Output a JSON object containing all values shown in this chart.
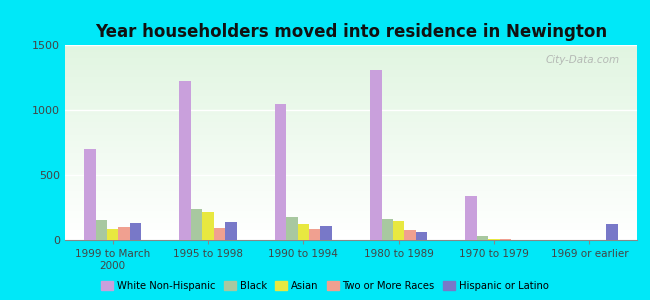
{
  "title": "Year householders moved into residence in Newington",
  "categories": [
    "1999 to March\n2000",
    "1995 to 1998",
    "1990 to 1994",
    "1980 to 1989",
    "1970 to 1979",
    "1969 or earlier"
  ],
  "series": {
    "White Non-Hispanic": [
      700,
      1220,
      1050,
      1310,
      335,
      0
    ],
    "Black": [
      155,
      235,
      175,
      160,
      30,
      0
    ],
    "Asian": [
      85,
      215,
      125,
      150,
      10,
      0
    ],
    "Two or More Races": [
      100,
      90,
      85,
      80,
      5,
      0
    ],
    "Hispanic or Latino": [
      130,
      135,
      110,
      65,
      0,
      120
    ]
  },
  "colors": {
    "White Non-Hispanic": "#c9a0dc",
    "Black": "#a8c8a0",
    "Asian": "#e8e840",
    "Two or More Races": "#f0a090",
    "Hispanic or Latino": "#7878c8"
  },
  "ylim": [
    0,
    1500
  ],
  "yticks": [
    0,
    500,
    1000,
    1500
  ],
  "background_outer": "#00e8f8",
  "watermark": "City-Data.com",
  "bar_width": 0.12
}
